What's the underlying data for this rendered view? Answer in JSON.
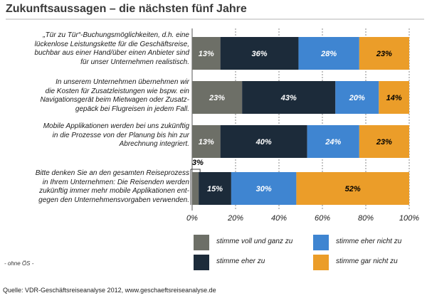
{
  "title": "Zukunftsaussagen – die nächsten fünf Jahre",
  "note": "- ohne ÖS -",
  "source": "Quelle: VDR-Geschäftsreiseanalyse 2012, www.geschaeftsreiseanalyse.de",
  "colors": {
    "stimme_voll": "#6d6f67",
    "stimme_eher": "#1c2b3a",
    "eher_nicht": "#3f85d1",
    "gar_nicht": "#eb9d29",
    "grid": "#8a8a8a",
    "label_light": "#ffffff",
    "label_dark": "#000000"
  },
  "chart_data": {
    "type": "bar",
    "orientation": "horizontal",
    "stacked": true,
    "title": "Zukunftsaussagen – die nächsten fünf Jahre",
    "categories": [
      "„Tür zu Tür“-Buchungsmöglichkeiten, d.h. eine lückenlose Leistungskette für die Geschäftsreise, buchbar aus einer Hand/über einen Anbieter sind für unser Unternehmen realistisch.",
      "In unserem Unternehmen übernehmen wir die Kosten für Zusatzleistungen wie bspw. ein Navigationsgerät beim Mietwagen oder Zusatzgepäck bei Flugreisen in jedem Fall.",
      "Mobile Applikationen werden bei uns zukünftig in die Prozesse von der Planung bis hin zur Abrechnung integriert.",
      "Bitte denken Sie an den gesamten Reiseprozess in Ihrem Unternehmen: Die Reisenden werden zukünftig immer mehr mobile Applikationen entgegen den Unternehmensvorgaben verwenden."
    ],
    "category_lines": [
      [
        "„Tür zu Tür“-Buchungsmöglichkeiten, d.h. eine",
        "lückenlose Leistungskette für die Geschäftsreise,",
        "buchbar aus einer Hand/über einen Anbieter sind",
        "für unser Unternehmen realistisch."
      ],
      [
        "In unserem Unternehmen übernehmen wir",
        "die Kosten für Zusatzleistungen wie bspw. ein",
        "Navigationsgerät beim Mietwagen oder Zusatz-",
        "gepäck bei Flugreisen in jedem Fall."
      ],
      [
        "Mobile Applikationen werden bei uns zukünftig",
        "in die Prozesse von der Planung bis hin zur",
        "Abrechnung integriert."
      ],
      [
        "Bitte denken Sie an den gesamten Reiseprozess",
        "in Ihrem Unternehmen: Die Reisenden werden",
        "zukünftig immer mehr mobile Applikationen ent-",
        "gegen den Unternehmensvorgaben verwenden."
      ]
    ],
    "series": [
      {
        "name": "stimme voll und ganz zu",
        "color_key": "stimme_voll",
        "values": [
          13,
          23,
          13,
          3
        ],
        "labels": [
          "13%",
          "23%",
          "13%",
          "3%"
        ]
      },
      {
        "name": "stimme eher zu",
        "color_key": "stimme_eher",
        "values": [
          36,
          43,
          40,
          15
        ],
        "labels": [
          "36%",
          "43%",
          "40%",
          "15%"
        ]
      },
      {
        "name": "stimme eher nicht zu",
        "color_key": "eher_nicht",
        "values": [
          28,
          20,
          24,
          30
        ],
        "labels": [
          "28%",
          "20%",
          "24%",
          "30%"
        ]
      },
      {
        "name": "stimme gar nicht zu",
        "color_key": "gar_nicht",
        "values": [
          23,
          14,
          23,
          52
        ],
        "labels": [
          "23%",
          "14%",
          "23%",
          "52%"
        ]
      }
    ],
    "xlim": [
      0,
      100
    ],
    "xticks": [
      "0%",
      "20%",
      "40%",
      "60%",
      "80%",
      "100%"
    ],
    "grid": true,
    "legend_position": "bottom"
  }
}
